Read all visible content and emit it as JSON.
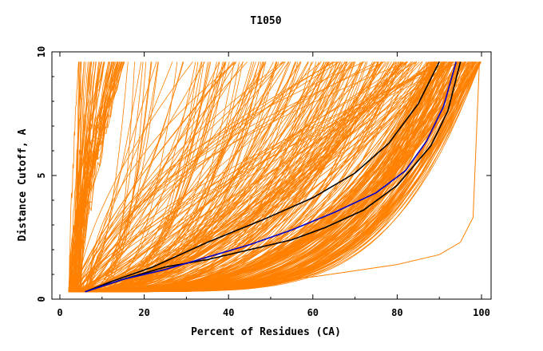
{
  "chart_data": {
    "type": "line",
    "title": "T1050",
    "xlabel": "Percent of Residues (CA)",
    "ylabel": "Distance Cutoff, A",
    "xlim": [
      0,
      100
    ],
    "ylim": [
      0,
      10
    ],
    "xticks": [
      "0",
      "20",
      "40",
      "60",
      "80",
      "100"
    ],
    "yticks": [
      "0",
      "5",
      "10"
    ],
    "colors": {
      "models": "#ff8000",
      "highlight_black": "#000000",
      "highlight_blue": "#0000cc"
    },
    "series": [
      {
        "color": "#000000",
        "x": [
          6,
          12,
          22,
          35,
          48,
          60,
          70,
          78,
          85,
          90
        ],
        "y": [
          0.3,
          0.7,
          1.3,
          2.3,
          3.2,
          4.1,
          5.1,
          6.3,
          7.9,
          9.6
        ]
      },
      {
        "color": "#000000",
        "x": [
          6,
          15,
          25,
          35,
          45,
          55,
          63,
          72,
          80,
          88,
          92,
          95
        ],
        "y": [
          0.3,
          0.8,
          1.3,
          1.6,
          2.0,
          2.4,
          2.9,
          3.6,
          4.6,
          6.2,
          7.6,
          9.6
        ]
      },
      {
        "color": "#0000cc",
        "x": [
          6,
          15,
          25,
          35,
          45,
          55,
          65,
          75,
          82,
          87,
          91,
          94
        ],
        "y": [
          0.3,
          0.8,
          1.2,
          1.7,
          2.2,
          2.8,
          3.5,
          4.3,
          5.2,
          6.4,
          7.8,
          9.6
        ]
      },
      {
        "color": "#ff8000",
        "x": [
          23,
          40,
          60,
          80,
          90,
          95,
          98,
          99.5
        ],
        "y": [
          0.3,
          0.6,
          0.9,
          1.4,
          1.8,
          2.3,
          3.3,
          9.6
        ]
      }
    ],
    "grid": false,
    "legend": "none"
  }
}
